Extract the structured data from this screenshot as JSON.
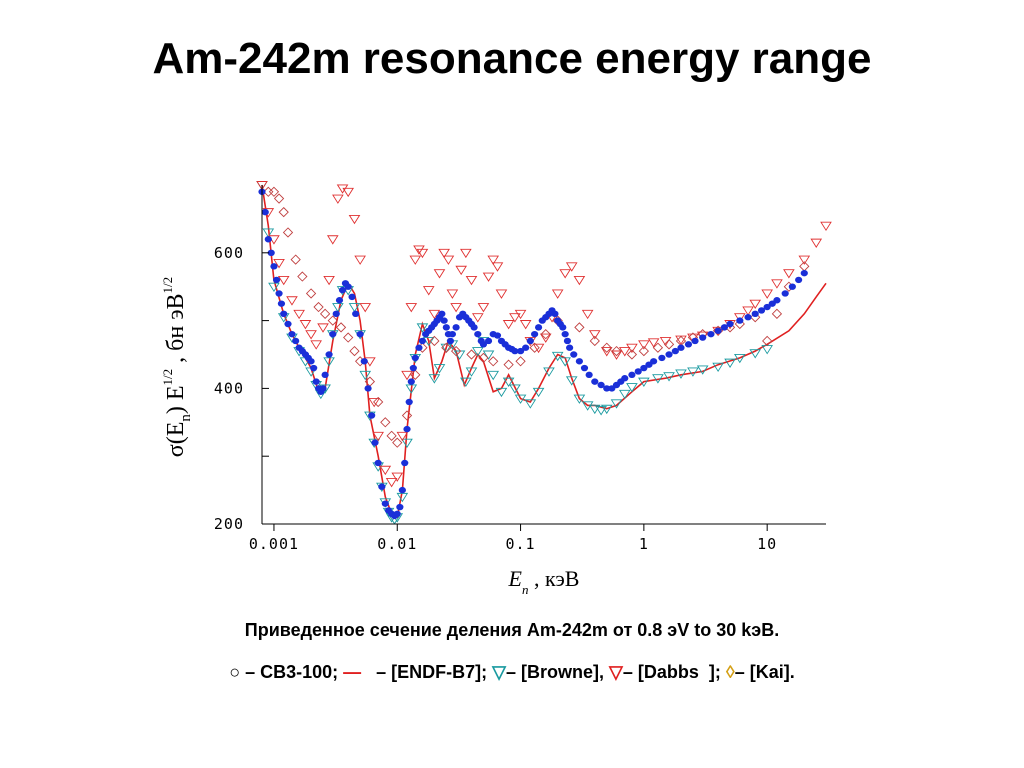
{
  "slide": {
    "title": "Am-242m resonance energy range"
  },
  "chart_data": {
    "type": "scatter",
    "title": "",
    "x_scale": "log",
    "xlim": [
      0.0008,
      30
    ],
    "ylim": [
      200,
      700
    ],
    "xlabel": {
      "symbol": "E",
      "subscript": "n",
      "unit": " ,  кэВ"
    },
    "ylabel": {
      "prefix": "σ(E",
      "sub": "n",
      "mid": ") E",
      "sup1": "1/2",
      "unit": " ,  бн эВ",
      "sup2": "1/2"
    },
    "x_ticks": [
      {
        "value": 0.001,
        "label": "0.001"
      },
      {
        "value": 0.01,
        "label": "0.01"
      },
      {
        "value": 0.1,
        "label": "0.1"
      },
      {
        "value": 1,
        "label": "1"
      },
      {
        "value": 10,
        "label": "10"
      }
    ],
    "y_ticks": [
      {
        "value": 200,
        "label": "200"
      },
      {
        "value": 300,
        "label": ""
      },
      {
        "value": 400,
        "label": "400"
      },
      {
        "value": 500,
        "label": ""
      },
      {
        "value": 600,
        "label": "600"
      }
    ],
    "series": [
      {
        "name": "[ENDF-B7]",
        "kind": "line",
        "color": "#e02020",
        "x": [
          0.0008,
          0.0009,
          0.001,
          0.0012,
          0.0014,
          0.0016,
          0.0018,
          0.002,
          0.0023,
          0.0026,
          0.003,
          0.0035,
          0.004,
          0.0045,
          0.005,
          0.0055,
          0.006,
          0.007,
          0.008,
          0.009,
          0.01,
          0.011,
          0.012,
          0.014,
          0.016,
          0.018,
          0.02,
          0.023,
          0.026,
          0.03,
          0.035,
          0.04,
          0.045,
          0.05,
          0.06,
          0.07,
          0.08,
          0.1,
          0.12,
          0.14,
          0.17,
          0.2,
          0.23,
          0.26,
          0.3,
          0.35,
          0.4,
          0.5,
          0.6,
          0.8,
          1,
          1.5,
          2,
          3,
          4,
          6,
          8,
          10,
          15,
          20,
          25,
          30
        ],
        "y": [
          700,
          640,
          560,
          510,
          480,
          460,
          445,
          430,
          395,
          400,
          470,
          530,
          555,
          540,
          500,
          440,
          360,
          300,
          240,
          215,
          210,
          250,
          340,
          450,
          495,
          470,
          415,
          440,
          470,
          455,
          405,
          430,
          450,
          440,
          395,
          400,
          420,
          385,
          380,
          400,
          430,
          450,
          445,
          415,
          385,
          375,
          375,
          370,
          375,
          395,
          410,
          415,
          420,
          425,
          435,
          445,
          455,
          465,
          485,
          510,
          535,
          555
        ]
      },
      {
        "name": "[Browne]",
        "kind": "marker",
        "marker": "triangle-down",
        "color": "#1a9aa0",
        "x": [
          0.0008,
          0.0009,
          0.001,
          0.0012,
          0.0014,
          0.0016,
          0.0018,
          0.002,
          0.0022,
          0.0024,
          0.0026,
          0.0028,
          0.003,
          0.0033,
          0.0036,
          0.004,
          0.0045,
          0.005,
          0.0055,
          0.006,
          0.0065,
          0.007,
          0.0075,
          0.008,
          0.0085,
          0.009,
          0.0095,
          0.01,
          0.011,
          0.012,
          0.013,
          0.014,
          0.016,
          0.018,
          0.02,
          0.022,
          0.025,
          0.028,
          0.032,
          0.036,
          0.04,
          0.045,
          0.05,
          0.055,
          0.06,
          0.07,
          0.08,
          0.09,
          0.1,
          0.12,
          0.14,
          0.17,
          0.2,
          0.23,
          0.26,
          0.3,
          0.35,
          0.4,
          0.45,
          0.5,
          0.6,
          0.7,
          0.8,
          1,
          1.3,
          1.6,
          2,
          2.5,
          3,
          4,
          5,
          6,
          8,
          10
        ],
        "y": [
          700,
          630,
          550,
          505,
          475,
          455,
          440,
          425,
          405,
          392,
          400,
          440,
          480,
          520,
          545,
          545,
          520,
          480,
          420,
          360,
          320,
          285,
          255,
          232,
          218,
          210,
          207,
          210,
          240,
          320,
          400,
          445,
          490,
          470,
          415,
          430,
          460,
          465,
          450,
          410,
          425,
          455,
          470,
          450,
          420,
          395,
          410,
          400,
          385,
          378,
          395,
          425,
          448,
          440,
          412,
          385,
          375,
          370,
          368,
          370,
          378,
          392,
          402,
          410,
          415,
          418,
          422,
          425,
          428,
          432,
          438,
          445,
          452,
          458
        ]
      },
      {
        "name": "[Dabbs ]",
        "kind": "marker",
        "marker": "triangle-down",
        "color": "#e03030",
        "x": [
          0.0008,
          0.0009,
          0.001,
          0.0011,
          0.0012,
          0.0014,
          0.0016,
          0.0018,
          0.002,
          0.0022,
          0.0025,
          0.0028,
          0.003,
          0.0033,
          0.0036,
          0.004,
          0.0045,
          0.005,
          0.0055,
          0.006,
          0.0065,
          0.007,
          0.008,
          0.009,
          0.01,
          0.011,
          0.012,
          0.013,
          0.014,
          0.015,
          0.016,
          0.018,
          0.02,
          0.022,
          0.024,
          0.026,
          0.028,
          0.03,
          0.033,
          0.036,
          0.04,
          0.045,
          0.05,
          0.055,
          0.06,
          0.065,
          0.07,
          0.08,
          0.09,
          0.1,
          0.11,
          0.12,
          0.14,
          0.16,
          0.18,
          0.2,
          0.23,
          0.26,
          0.3,
          0.35,
          0.4,
          0.5,
          0.6,
          0.7,
          0.8,
          1,
          1.2,
          1.5,
          2,
          2.5,
          3,
          4,
          5,
          6,
          7,
          8,
          10,
          12,
          15,
          20,
          25,
          30
        ],
        "y": [
          700,
          660,
          620,
          585,
          560,
          530,
          510,
          495,
          480,
          465,
          490,
          560,
          620,
          680,
          695,
          690,
          650,
          590,
          520,
          440,
          380,
          330,
          280,
          262,
          270,
          330,
          420,
          520,
          590,
          605,
          600,
          545,
          510,
          570,
          600,
          590,
          540,
          520,
          575,
          600,
          560,
          505,
          520,
          565,
          590,
          580,
          540,
          495,
          505,
          510,
          495,
          470,
          460,
          475,
          505,
          540,
          570,
          580,
          560,
          510,
          480,
          455,
          450,
          455,
          460,
          465,
          468,
          470,
          472,
          475,
          478,
          485,
          495,
          505,
          515,
          525,
          540,
          555,
          570,
          590,
          615,
          640
        ]
      },
      {
        "name": "[Kai]",
        "kind": "marker",
        "marker": "diamond",
        "color": "#c04040",
        "x": [
          0.0009,
          0.001,
          0.0011,
          0.0012,
          0.0013,
          0.0015,
          0.0017,
          0.002,
          0.0023,
          0.0026,
          0.003,
          0.0035,
          0.004,
          0.0045,
          0.005,
          0.006,
          0.007,
          0.008,
          0.009,
          0.01,
          0.012,
          0.014,
          0.016,
          0.02,
          0.025,
          0.03,
          0.04,
          0.05,
          0.06,
          0.08,
          0.1,
          0.13,
          0.16,
          0.2,
          0.3,
          0.4,
          0.5,
          0.6,
          0.8,
          1,
          1.3,
          1.6,
          2,
          2.5,
          3,
          4,
          5,
          6,
          8,
          10,
          12,
          15,
          20
        ],
        "y": [
          690,
          690,
          680,
          660,
          630,
          590,
          565,
          540,
          520,
          510,
          500,
          490,
          475,
          455,
          440,
          410,
          380,
          350,
          330,
          320,
          360,
          420,
          460,
          470,
          460,
          455,
          450,
          445,
          440,
          435,
          440,
          460,
          480,
          500,
          490,
          470,
          460,
          455,
          450,
          455,
          460,
          465,
          470,
          475,
          480,
          485,
          490,
          495,
          505,
          470,
          510,
          550,
          580
        ]
      },
      {
        "name": "СВ3-100",
        "kind": "marker",
        "marker": "dot",
        "color": "#1a2fd8",
        "x": [
          0.0008,
          0.00085,
          0.0009,
          0.00095,
          0.001,
          0.00105,
          0.0011,
          0.00115,
          0.0012,
          0.0013,
          0.0014,
          0.0015,
          0.0016,
          0.0017,
          0.0018,
          0.0019,
          0.002,
          0.0021,
          0.0022,
          0.0023,
          0.0024,
          0.0025,
          0.0026,
          0.0028,
          0.003,
          0.0032,
          0.0034,
          0.0036,
          0.0038,
          0.004,
          0.0043,
          0.0046,
          0.005,
          0.0054,
          0.0058,
          0.0062,
          0.0066,
          0.007,
          0.0075,
          0.008,
          0.0085,
          0.009,
          0.0095,
          0.01,
          0.0105,
          0.011,
          0.0115,
          0.012,
          0.0125,
          0.013,
          0.0135,
          0.014,
          0.015,
          0.016,
          0.017,
          0.018,
          0.019,
          0.02,
          0.021,
          0.022,
          0.023,
          0.024,
          0.025,
          0.026,
          0.027,
          0.028,
          0.03,
          0.032,
          0.034,
          0.036,
          0.038,
          0.04,
          0.042,
          0.045,
          0.048,
          0.05,
          0.055,
          0.06,
          0.065,
          0.07,
          0.075,
          0.08,
          0.085,
          0.09,
          0.1,
          0.11,
          0.12,
          0.13,
          0.14,
          0.15,
          0.16,
          0.17,
          0.18,
          0.19,
          0.2,
          0.21,
          0.22,
          0.23,
          0.24,
          0.25,
          0.27,
          0.3,
          0.33,
          0.36,
          0.4,
          0.45,
          0.5,
          0.55,
          0.6,
          0.65,
          0.7,
          0.8,
          0.9,
          1,
          1.1,
          1.2,
          1.4,
          1.6,
          1.8,
          2,
          2.3,
          2.6,
          3,
          3.5,
          4,
          4.5,
          5,
          6,
          7,
          8,
          9,
          10,
          11,
          12,
          14,
          16,
          18,
          20
        ],
        "y": [
          690,
          660,
          620,
          600,
          580,
          560,
          540,
          525,
          510,
          495,
          480,
          470,
          460,
          455,
          450,
          445,
          440,
          430,
          410,
          400,
          395,
          400,
          420,
          450,
          480,
          510,
          530,
          545,
          555,
          550,
          535,
          510,
          480,
          440,
          400,
          360,
          320,
          290,
          255,
          230,
          220,
          215,
          212,
          215,
          225,
          250,
          290,
          340,
          380,
          410,
          430,
          445,
          460,
          470,
          480,
          485,
          490,
          495,
          500,
          505,
          510,
          500,
          490,
          480,
          470,
          480,
          490,
          505,
          510,
          505,
          500,
          495,
          490,
          480,
          470,
          465,
          470,
          480,
          478,
          470,
          465,
          460,
          458,
          455,
          455,
          460,
          470,
          480,
          490,
          500,
          505,
          510,
          515,
          510,
          500,
          495,
          490,
          480,
          470,
          460,
          450,
          440,
          430,
          420,
          410,
          405,
          400,
          400,
          405,
          410,
          415,
          420,
          425,
          430,
          435,
          440,
          445,
          450,
          455,
          460,
          465,
          470,
          475,
          480,
          485,
          490,
          495,
          500,
          505,
          510,
          515,
          520,
          525,
          530,
          540,
          550,
          560,
          570
        ]
      }
    ]
  },
  "captions": {
    "line1": "Приведенное сечение деления  Am-242m от 0.8 эV to 30 kэB.",
    "legend": [
      {
        "symbol": "○",
        "symbol_color": "#000000",
        "text": " – СВ3-100; "
      },
      {
        "symbol": "—",
        "symbol_color": "#e02020",
        "text": "   – [ENDF-B7]; "
      },
      {
        "symbol": "▽",
        "symbol_color": "#1a9aa0",
        "text": "– [Browne], "
      },
      {
        "symbol": "▽",
        "symbol_color": "#e02020",
        "text": "– [Dabbs  ]; "
      },
      {
        "symbol": "◊",
        "symbol_color": "#d4a017",
        "text": "– [Kai]."
      }
    ]
  }
}
